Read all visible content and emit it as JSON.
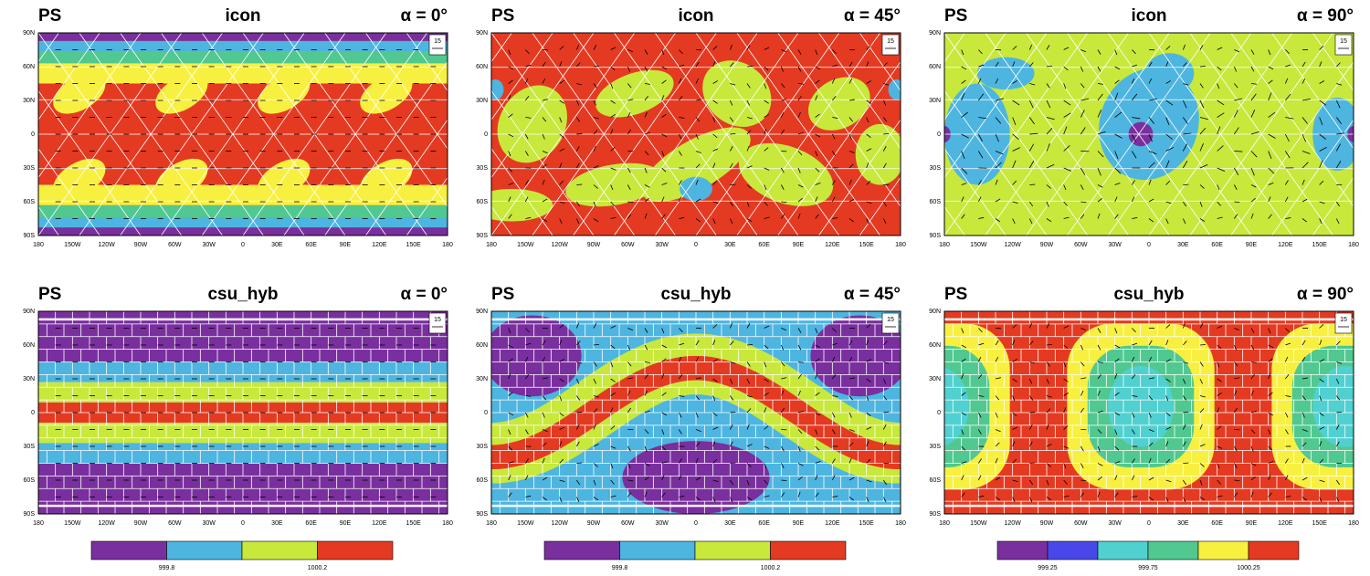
{
  "panels": [
    {
      "label": "PS",
      "model": "icon",
      "angle": "α = 0°"
    },
    {
      "label": "PS",
      "model": "icon",
      "angle": "α = 45°"
    },
    {
      "label": "PS",
      "model": "icon",
      "angle": "α = 90°"
    },
    {
      "label": "PS",
      "model": "csu_hyb",
      "angle": "α = 0°"
    },
    {
      "label": "PS",
      "model": "csu_hyb",
      "angle": "α = 45°"
    },
    {
      "label": "PS",
      "model": "csu_hyb",
      "angle": "α = 90°"
    }
  ],
  "lat_labels": [
    "90N",
    "60N",
    "30N",
    "0",
    "30S",
    "60S",
    "90S"
  ],
  "lon_labels": [
    "180",
    "150W",
    "120W",
    "90W",
    "60W",
    "30W",
    "0",
    "30E",
    "60E",
    "90E",
    "120E",
    "150E",
    "180"
  ],
  "vector_key": "15",
  "colorbars": [
    {
      "colors": [
        "#7a2f9e",
        "#4db5e0",
        "#c8e83c",
        "#e43a22"
      ],
      "labels": [
        "999.8",
        "1000.2"
      ]
    },
    {
      "colors": [
        "#7a2f9e",
        "#4db5e0",
        "#c8e83c",
        "#e43a22"
      ],
      "labels": [
        "999.8",
        "1000.2"
      ]
    },
    {
      "colors": [
        "#7a2f9e",
        "#4848e8",
        "#50d0d0",
        "#50c890",
        "#f8f040",
        "#e43a22"
      ],
      "labels": [
        "999.25",
        "999.75",
        "1000.25"
      ]
    }
  ]
}
